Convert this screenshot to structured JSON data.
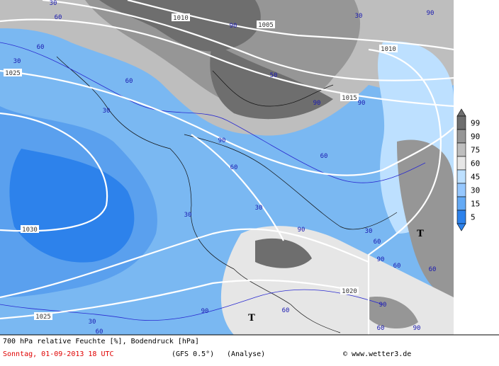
{
  "legend": {
    "levels": [
      99,
      90,
      75,
      60,
      45,
      30,
      15,
      5
    ]
  },
  "footer": {
    "title": "700 hPa relative Feuchte [%], Bodendruck [hPa]",
    "date": "Sonntag, 01-09-2013  18 UTC",
    "model": "(GFS 0.5°)",
    "run": "(Analyse)",
    "credit": "© www.wetter3.de"
  },
  "isobar_labels": [
    "1010",
    "1005",
    "1010",
    "1015",
    "1025",
    "1030",
    "1020",
    "1025"
  ],
  "humidity_labels": [
    "30",
    "60",
    "90",
    "30",
    "90",
    "60",
    "30",
    "60",
    "30",
    "50",
    "90",
    "90",
    "90",
    "60",
    "60",
    "30",
    "30",
    "90",
    "30",
    "60",
    "90",
    "60",
    "60",
    "90",
    "60",
    "90",
    "90",
    "60",
    "30",
    "60"
  ],
  "markers": [
    "T",
    "T"
  ]
}
